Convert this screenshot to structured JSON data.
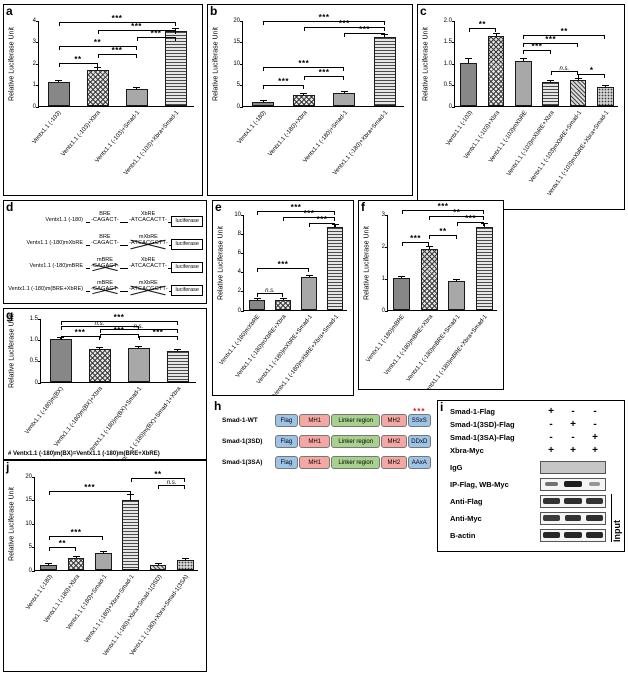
{
  "panels": {
    "a": {
      "label": "a"
    },
    "b": {
      "label": "b"
    },
    "c": {
      "label": "c"
    },
    "d": {
      "label": "d"
    },
    "e": {
      "label": "e"
    },
    "f": {
      "label": "f"
    },
    "g": {
      "label": "g",
      "footnote": "# Ventx1.1 (-180)m(BX)=Ventx1.1 (-180)m(BRE+XbRE)"
    },
    "h": {
      "label": "h"
    },
    "i": {
      "label": "i"
    },
    "j": {
      "label": "j"
    }
  },
  "chart_data": [
    {
      "id": "a",
      "type": "bar",
      "ylabel": "Relative Luciferase Unit",
      "ylim": [
        0,
        4
      ],
      "yticks": [
        "0",
        "1",
        "2",
        "3",
        "4"
      ],
      "grid": false,
      "categories": [
        "Ventx1.1 (-103)",
        "Ventx1.1 (-103)+Xbra",
        "Ventx1.1 (-103)+Smad-1",
        "Ventx1.1 (-103)+Xbra+Smad-1"
      ],
      "values": [
        1.1,
        1.7,
        0.8,
        3.5
      ],
      "errors": [
        0.06,
        0.1,
        0.05,
        0.15
      ],
      "significance": [
        {
          "from": 0,
          "to": 1,
          "label": "**",
          "y": 2.05
        },
        {
          "from": 1,
          "to": 2,
          "label": "***",
          "y": 2.45
        },
        {
          "from": 0,
          "to": 2,
          "label": "**",
          "y": 2.85
        },
        {
          "from": 2,
          "to": 3,
          "label": "***",
          "y": 3.25
        },
        {
          "from": 1,
          "to": 3,
          "label": "***",
          "y": 3.6
        },
        {
          "from": 0,
          "to": 3,
          "label": "***",
          "y": 3.95
        }
      ]
    },
    {
      "id": "b",
      "type": "bar",
      "ylabel": "Relative Luciferase Unit",
      "ylim": [
        0,
        20
      ],
      "yticks": [
        "0",
        "5",
        "10",
        "15",
        "20"
      ],
      "grid": false,
      "categories": [
        "Ventx1.1 (-180)",
        "Ventx1.1 (-180)+Xbra",
        "Ventx1.1 (-180)+Smad-1",
        "Ventx1.1 (-180)+Xbra+Smad-1"
      ],
      "values": [
        1,
        2.5,
        3,
        16
      ],
      "errors": [
        0.1,
        0.2,
        0.25,
        0.7
      ],
      "significance": [
        {
          "from": 0,
          "to": 1,
          "label": "***",
          "y": 5.2
        },
        {
          "from": 1,
          "to": 2,
          "label": "***",
          "y": 7.2
        },
        {
          "from": 0,
          "to": 2,
          "label": "***",
          "y": 9.3
        },
        {
          "from": 2,
          "to": 3,
          "label": "***",
          "y": 17.2
        },
        {
          "from": 1,
          "to": 3,
          "label": "***",
          "y": 18.6
        },
        {
          "from": 0,
          "to": 3,
          "label": "***",
          "y": 19.9
        }
      ]
    },
    {
      "id": "c",
      "type": "bar",
      "ylabel": "Relative Luciferase Unit",
      "ylim": [
        0,
        2
      ],
      "yticks": [
        "0",
        "0.5",
        "1.0",
        "1.5",
        "2.0"
      ],
      "grid": false,
      "categories": [
        "Ventx1.1 (-103)",
        "Ventx1.1 (-103)+Xbra",
        "Ventx1.1 (-103)mXbRE",
        "Ventx1.1 (-103)mXbRE+Xbra",
        "Ventx1.1 (-103)mXbRE+Smad-1",
        "Ventx1.1 (-103)mXbRE+Xbra+Smad-1"
      ],
      "values": [
        1.0,
        1.62,
        1.05,
        0.55,
        0.6,
        0.45
      ],
      "errors": [
        0.12,
        0.08,
        0.07,
        0.04,
        0.05,
        0.04
      ],
      "significance": [
        {
          "from": 0,
          "to": 1,
          "label": "**",
          "y": 1.85
        },
        {
          "from": 2,
          "to": 5,
          "label": "**",
          "y": 1.68
        },
        {
          "from": 2,
          "to": 4,
          "label": "***",
          "y": 1.5
        },
        {
          "from": 2,
          "to": 3,
          "label": "***",
          "y": 1.32
        },
        {
          "from": 3,
          "to": 4,
          "label": "n.s.",
          "y": 0.85
        },
        {
          "from": 4,
          "to": 5,
          "label": "*",
          "y": 0.78
        }
      ]
    },
    {
      "id": "e",
      "type": "bar",
      "ylabel": "Relative Luciferase Unit",
      "ylim": [
        0,
        10
      ],
      "yticks": [
        "0",
        "2",
        "4",
        "6",
        "8",
        "10"
      ],
      "grid": false,
      "categories": [
        "Ventx1.1 (-180)mXbRE",
        "Ventx1.1 (-180)mXbRE+Xbra",
        "Ventx1.1 (-180)mXbRE+Smad-1",
        "Ventx1.1 (-180)mXbRE+Xbra+Smad-1"
      ],
      "values": [
        1,
        1.05,
        3.4,
        8.6
      ],
      "errors": [
        0.1,
        0.1,
        0.3,
        0.35
      ],
      "significance": [
        {
          "from": 0,
          "to": 1,
          "label": "n.s.",
          "y": 1.9
        },
        {
          "from": 0,
          "to": 2,
          "label": "***",
          "y": 4.5
        },
        {
          "from": 2,
          "to": 3,
          "label": "***",
          "y": 9.2
        },
        {
          "from": 1,
          "to": 3,
          "label": "***",
          "y": 9.8
        },
        {
          "from": 0,
          "to": 3,
          "label": "***",
          "y": 10.4
        }
      ]
    },
    {
      "id": "f",
      "type": "bar",
      "ylabel": "Relative Luciferase Unit",
      "ylim": [
        0,
        3
      ],
      "yticks": [
        "0",
        "1",
        "2",
        "3"
      ],
      "grid": false,
      "categories": [
        "Ventx1.1 (-180)mBRE",
        "Ventx1.1 (-180)mBRE+Xbra",
        "Ventx1.1 (-180)mBRE+Smad-1",
        "Ventx1.1 (-180)mBRE+Xbra+Smad-1"
      ],
      "values": [
        1,
        1.9,
        0.9,
        2.6
      ],
      "errors": [
        0.06,
        0.1,
        0.06,
        0.12
      ],
      "significance": [
        {
          "from": 0,
          "to": 1,
          "label": "***",
          "y": 2.15
        },
        {
          "from": 1,
          "to": 2,
          "label": "**",
          "y": 2.38
        },
        {
          "from": 2,
          "to": 3,
          "label": "***",
          "y": 2.78
        },
        {
          "from": 1,
          "to": 3,
          "label": "**",
          "y": 2.97
        },
        {
          "from": 0,
          "to": 3,
          "label": "***",
          "y": 3.15
        }
      ]
    },
    {
      "id": "g",
      "type": "bar",
      "ylabel": "Relative Luciferase Unit",
      "ylim": [
        0,
        1.5
      ],
      "yticks": [
        "0",
        "0.5",
        "1.0",
        "1.5"
      ],
      "grid": false,
      "categories": [
        "Ventx1.1 (-180)m(BX)",
        "Ventx1.1 (-180)m(BX)+Xbra",
        "Ventx1.1 (-180)m(BX)+Smad-1",
        "Ventx1.1 (-180)m(BX)+Smad-1+Xbra"
      ],
      "values": [
        1.0,
        0.78,
        0.8,
        0.72
      ],
      "errors": [
        0.05,
        0.04,
        0.05,
        0.04
      ],
      "significance": [
        {
          "from": 0,
          "to": 1,
          "label": "***",
          "y": 1.1
        },
        {
          "from": 1,
          "to": 2,
          "label": "***",
          "y": 1.16
        },
        {
          "from": 2,
          "to": 3,
          "label": "***",
          "y": 1.1
        },
        {
          "from": 1,
          "to": 3,
          "label": "n.s.",
          "y": 1.26
        },
        {
          "from": 0,
          "to": 2,
          "label": "n.s.",
          "y": 1.33
        },
        {
          "from": 0,
          "to": 3,
          "label": "***",
          "y": 1.45
        }
      ]
    },
    {
      "id": "j",
      "type": "bar",
      "ylabel": "Relative Luciferase Unit",
      "ylim": [
        0,
        20
      ],
      "yticks": [
        "0",
        "5",
        "10",
        "15",
        "20"
      ],
      "grid": false,
      "categories": [
        "Ventx1.1 (-180)",
        "Ventx1.1 (-180)+Xbra",
        "Ventx1.1 (-180)+Smad-1",
        "Ventx1.1 (-180)+Xbra+Smad-1",
        "Ventx1.1 (-180)+Xbra+Smad-1(3SD)",
        "Ventx1.1 (-180)+Xbra+Smad-1(3SA)"
      ],
      "values": [
        1,
        2.6,
        3.6,
        15,
        1.1,
        2.1
      ],
      "errors": [
        0.1,
        0.25,
        0.3,
        1.2,
        0.1,
        0.2
      ],
      "significance": [
        {
          "from": 0,
          "to": 1,
          "label": "**",
          "y": 5.2
        },
        {
          "from": 0,
          "to": 2,
          "label": "***",
          "y": 7.4
        },
        {
          "from": 0,
          "to": 3,
          "label": "***",
          "y": 17.0
        },
        {
          "from": 4,
          "to": 5,
          "label": "n.s.",
          "y": 18.4
        },
        {
          "from": 3,
          "to": 5,
          "label": "**",
          "y": 19.8
        }
      ]
    }
  ],
  "construct_diagram": {
    "rows": [
      {
        "name": "Ventx1.1 (-180)",
        "sites": [
          {
            "label": "BRE",
            "seq": "-CAGACT-",
            "mutated": false
          },
          {
            "label": "XbRE",
            "seq": "-ATCACACTT-",
            "mutated": false
          }
        ],
        "reporter": "luciferase"
      },
      {
        "name": "Ventx1.1 (-180)mXbRE",
        "sites": [
          {
            "label": "BRE",
            "seq": "-CAGACT-",
            "mutated": false
          },
          {
            "label": "mXbRE",
            "seq": "-ATCACGCTT-",
            "mutated": true
          }
        ],
        "reporter": "luciferase"
      },
      {
        "name": "Ventx1.1 (-180)mBRE",
        "sites": [
          {
            "label": "mBRE",
            "seq": "-CAGACT-",
            "mutated": true
          },
          {
            "label": "XbRE",
            "seq": "-ATCACACTT-",
            "mutated": false
          }
        ],
        "reporter": "luciferase"
      },
      {
        "name": "Ventx1.1 (-180)m(BRE+XbRE)",
        "sites": [
          {
            "label": "mBRE",
            "seq": "-CAGACT-",
            "mutated": true
          },
          {
            "label": "mXbRE",
            "seq": "-ATCACGCTT-",
            "mutated": true
          }
        ],
        "reporter": "luciferase"
      }
    ]
  },
  "smad_diagram": {
    "domain_colors": {
      "flag": "#9dc3e6",
      "mh1": "#f4a7a3",
      "linker": "#a9d18e",
      "mh2": "#f4a7a3",
      "tail": "#9dc3e6"
    },
    "rows": [
      {
        "name": "Smad-1-WT",
        "boxes": [
          "Flag",
          "MH1",
          "Linker region",
          "MH2",
          "SSxS"
        ],
        "phospho_marks": "***"
      },
      {
        "name": "Smad-1(3SD)",
        "boxes": [
          "Flag",
          "MH1",
          "Linker region",
          "MH2",
          "DDxD"
        ]
      },
      {
        "name": "Smad-1(3SA)",
        "boxes": [
          "Flag",
          "MH1",
          "Linker region",
          "MH2",
          "AAxA"
        ]
      }
    ]
  },
  "coip_blot": {
    "conditions": [
      {
        "label": "Smad-1-Flag",
        "values": [
          "+",
          "-",
          "-"
        ]
      },
      {
        "label": "Smad-1(3SD)-Flag",
        "values": [
          "-",
          "+",
          "-"
        ]
      },
      {
        "label": "Smad-1(3SA)-Flag",
        "values": [
          "-",
          "-",
          "+"
        ]
      },
      {
        "label": "Xbra-Myc",
        "values": [
          "+",
          "+",
          "+"
        ]
      }
    ],
    "blots": [
      {
        "label": "IgG",
        "block": true
      },
      {
        "label": "IP-Flag, WB-Myc",
        "lanes": [
          0.45,
          1,
          0.2
        ]
      },
      {
        "label": "Anti-Flag",
        "lanes": [
          0.85,
          0.9,
          0.85
        ]
      },
      {
        "label": "Anti-Myc",
        "lanes": [
          0.8,
          0.85,
          0.9
        ]
      },
      {
        "label": "B-actin",
        "lanes": [
          0.95,
          0.95,
          0.95
        ]
      }
    ],
    "input_label": "Input"
  }
}
